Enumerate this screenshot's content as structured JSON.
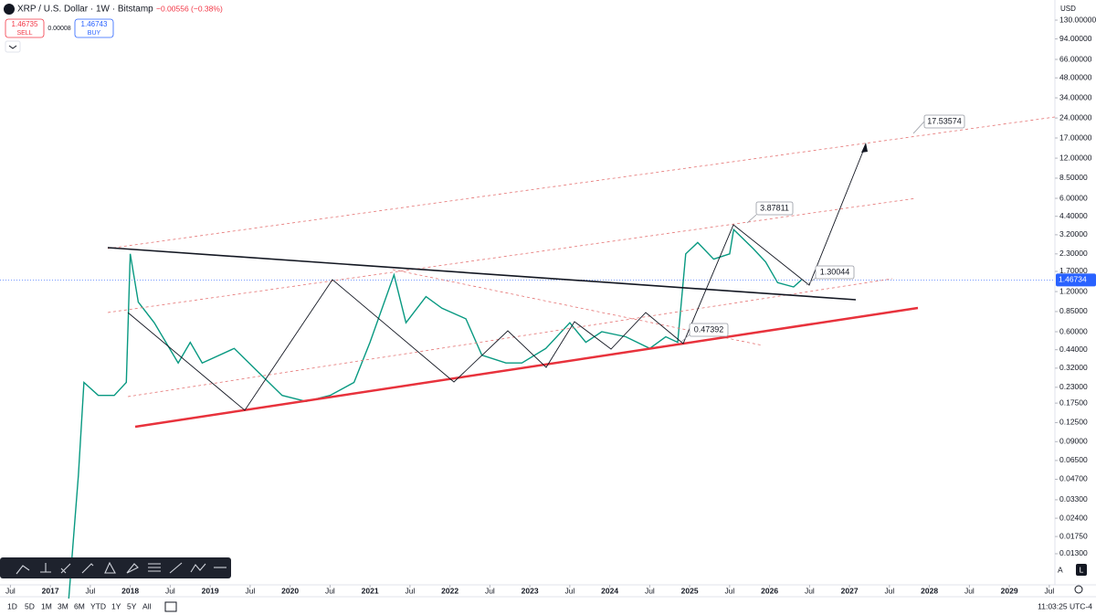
{
  "header": {
    "title": "XRP / U.S. Dollar · 1W · Bitstamp",
    "change": "−0.00556 (−0.38%)"
  },
  "order_panel": {
    "sell_price": "1.46735",
    "sell": "SELL",
    "spread": "0.00008",
    "buy_price": "1.46743",
    "buy": "BUY"
  },
  "currency": "USD",
  "chart_data": {
    "type": "line",
    "log_scale": true,
    "ylim": [
      0.0076,
      184
    ],
    "xlim": [
      2016.37,
      2029.57
    ],
    "yticks": [
      {
        "value": 130,
        "label": "130.00000"
      },
      {
        "value": 94,
        "label": "94.00000"
      },
      {
        "value": 66,
        "label": "66.00000"
      },
      {
        "value": 48,
        "label": "48.00000"
      },
      {
        "value": 34,
        "label": "34.00000"
      },
      {
        "value": 24,
        "label": "24.00000"
      },
      {
        "value": 17,
        "label": "17.00000"
      },
      {
        "value": 12,
        "label": "12.00000"
      },
      {
        "value": 8.5,
        "label": "8.50000"
      },
      {
        "value": 6,
        "label": "6.00000"
      },
      {
        "value": 4.4,
        "label": "4.40000"
      },
      {
        "value": 3.2,
        "label": "3.20000"
      },
      {
        "value": 2.3,
        "label": "2.30000"
      },
      {
        "value": 1.7,
        "label": "1.70000"
      },
      {
        "value": 1.2,
        "label": "1.20000"
      },
      {
        "value": 0.85,
        "label": "0.85000"
      },
      {
        "value": 0.6,
        "label": "0.60000"
      },
      {
        "value": 0.44,
        "label": "0.44000"
      },
      {
        "value": 0.32,
        "label": "0.32000"
      },
      {
        "value": 0.23,
        "label": "0.23000"
      },
      {
        "value": 0.175,
        "label": "0.17500"
      },
      {
        "value": 0.125,
        "label": "0.12500"
      },
      {
        "value": 0.09,
        "label": "0.09000"
      },
      {
        "value": 0.065,
        "label": "0.06500"
      },
      {
        "value": 0.047,
        "label": "0.04700"
      },
      {
        "value": 0.033,
        "label": "0.03300"
      },
      {
        "value": 0.024,
        "label": "0.02400"
      },
      {
        "value": 0.0175,
        "label": "0.01750"
      },
      {
        "value": 0.013,
        "label": "0.01300"
      }
    ],
    "xticks": [
      {
        "value": 2016.5,
        "label": "Jul"
      },
      2017,
      {
        "value": 2017.5,
        "label": "Jul"
      },
      2018,
      {
        "value": 2018.5,
        "label": "Jul"
      },
      2019,
      {
        "value": 2019.5,
        "label": "Jul"
      },
      2020,
      {
        "value": 2020.5,
        "label": "Jul"
      },
      2021,
      {
        "value": 2021.5,
        "label": "Jul"
      },
      2022,
      {
        "value": 2022.5,
        "label": "Jul"
      },
      2023,
      {
        "value": 2023.5,
        "label": "Jul"
      },
      2024,
      {
        "value": 2024.5,
        "label": "Jul"
      },
      2025,
      {
        "value": 2025.5,
        "label": "Jul"
      },
      2026,
      {
        "value": 2026.5,
        "label": "Jul"
      },
      2027,
      {
        "value": 2027.5,
        "label": "Jul"
      },
      2028,
      {
        "value": 2028.5,
        "label": "Jul"
      },
      2029,
      {
        "value": 2029.5,
        "label": "Jul"
      }
    ],
    "series": [
      {
        "name": "XRPUSD",
        "color": "#089981",
        "x": [
          2017.23,
          2017.35,
          2017.42,
          2017.6,
          2017.8,
          2017.95,
          2018.0,
          2018.1,
          2018.3,
          2018.6,
          2018.75,
          2018.9,
          2019.3,
          2019.6,
          2019.9,
          2020.2,
          2020.5,
          2020.8,
          2021.0,
          2021.3,
          2021.45,
          2021.7,
          2021.9,
          2022.2,
          2022.4,
          2022.7,
          2022.9,
          2023.2,
          2023.5,
          2023.7,
          2023.9,
          2024.2,
          2024.5,
          2024.7,
          2024.85,
          2024.95,
          2025.1,
          2025.3,
          2025.5,
          2025.55,
          2025.8,
          2025.95,
          2026.1,
          2026.3,
          2026.4
        ],
        "values": [
          0.006,
          0.05,
          0.25,
          0.2,
          0.2,
          0.25,
          2.3,
          1.0,
          0.7,
          0.35,
          0.5,
          0.35,
          0.45,
          0.3,
          0.2,
          0.18,
          0.2,
          0.25,
          0.5,
          1.6,
          0.7,
          1.1,
          0.9,
          0.75,
          0.4,
          0.35,
          0.35,
          0.45,
          0.7,
          0.5,
          0.6,
          0.55,
          0.45,
          0.55,
          0.5,
          2.3,
          2.8,
          2.1,
          2.3,
          3.5,
          2.5,
          2.0,
          1.4,
          1.3,
          1.47
        ]
      }
    ],
    "last_price": 1.46734,
    "annotations": [
      "17.53574",
      "3.87811",
      "1.30044",
      "0.47392"
    ]
  },
  "bottom_bar": {
    "ranges": [
      "1D",
      "5D",
      "1M",
      "3M",
      "6M",
      "YTD",
      "1Y",
      "5Y",
      "All"
    ],
    "clock": "11:03:25 UTC-4",
    "auto": "A",
    "log": "L"
  }
}
